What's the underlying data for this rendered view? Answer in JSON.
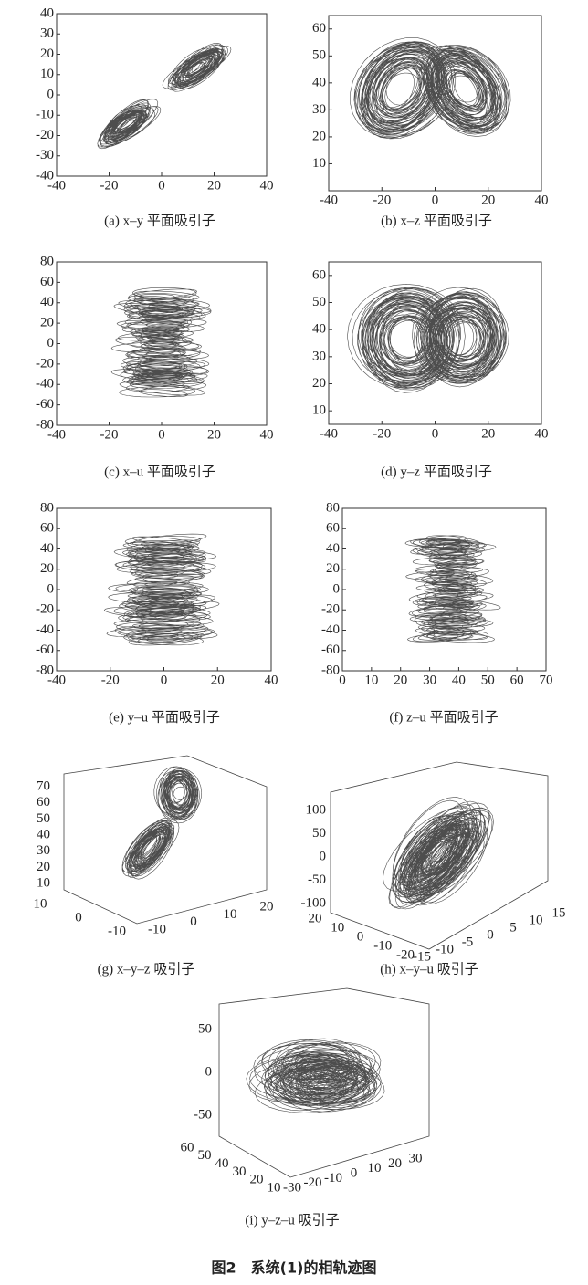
{
  "chart_data": [
    {
      "type": "phase",
      "caption": "(a) x–y 平面吸引子",
      "xlim": [
        -40,
        40
      ],
      "ylim": [
        -40,
        40
      ],
      "xticks": [
        -40,
        -20,
        0,
        20,
        40
      ],
      "yticks": [
        -40,
        -30,
        -20,
        -10,
        0,
        10,
        20,
        30,
        40
      ]
    },
    {
      "type": "phase",
      "caption": "(b) x–z 平面吸引子",
      "xlim": [
        -40,
        40
      ],
      "ylim": [
        0,
        65
      ],
      "xticks": [
        -40,
        -20,
        0,
        20,
        40
      ],
      "yticks": [
        10,
        20,
        30,
        40,
        50,
        60
      ]
    },
    {
      "type": "phase",
      "caption": "(c) x–u 平面吸引子",
      "xlim": [
        -40,
        40
      ],
      "ylim": [
        -80,
        80
      ],
      "xticks": [
        -40,
        -20,
        0,
        20,
        40
      ],
      "yticks": [
        -80,
        -60,
        -40,
        -20,
        0,
        20,
        40,
        60,
        80
      ]
    },
    {
      "type": "phase",
      "caption": "(d) y–z 平面吸引子",
      "xlim": [
        -40,
        40
      ],
      "ylim": [
        5,
        65
      ],
      "xticks": [
        -40,
        -20,
        0,
        20,
        40
      ],
      "yticks": [
        10,
        20,
        30,
        40,
        50,
        60
      ]
    },
    {
      "type": "phase",
      "caption": "(e) y–u 平面吸引子",
      "xlim": [
        -40,
        40
      ],
      "ylim": [
        -80,
        80
      ],
      "xticks": [
        -40,
        -20,
        0,
        20,
        40
      ],
      "yticks": [
        -80,
        -60,
        -40,
        -20,
        0,
        20,
        40,
        60,
        80
      ]
    },
    {
      "type": "phase",
      "caption": "(f) z–u 平面吸引子",
      "xlim": [
        0,
        70
      ],
      "ylim": [
        -80,
        80
      ],
      "xticks": [
        0,
        10,
        20,
        30,
        40,
        50,
        60,
        70
      ],
      "yticks": [
        -80,
        -60,
        -40,
        -20,
        0,
        20,
        40,
        60,
        80
      ]
    },
    {
      "type": "phase3d",
      "caption": "(g) x–y–z 吸引子",
      "zticks": [
        10,
        20,
        30,
        40,
        50,
        60,
        70
      ],
      "xticks": [
        -10,
        0,
        10
      ],
      "yticks": [
        -10,
        0,
        10,
        20
      ]
    },
    {
      "type": "phase3d",
      "caption": "(h) x–y–u 吸引子",
      "uticks": [
        -100,
        -50,
        0,
        50,
        100
      ],
      "xticks": [
        -20,
        -10,
        0,
        10,
        20
      ],
      "yticks": [
        -15,
        -10,
        -5,
        0,
        5,
        10,
        15
      ]
    },
    {
      "type": "phase3d",
      "caption": "(i) y–z–u 吸引子",
      "uticks": [
        -50,
        0,
        50
      ],
      "zticks": [
        10,
        20,
        30,
        40,
        50,
        60
      ],
      "yticks": [
        -30,
        -20,
        -10,
        0,
        10,
        20,
        30
      ]
    }
  ],
  "figure_caption": "图2　系统(1)的相轨迹图"
}
